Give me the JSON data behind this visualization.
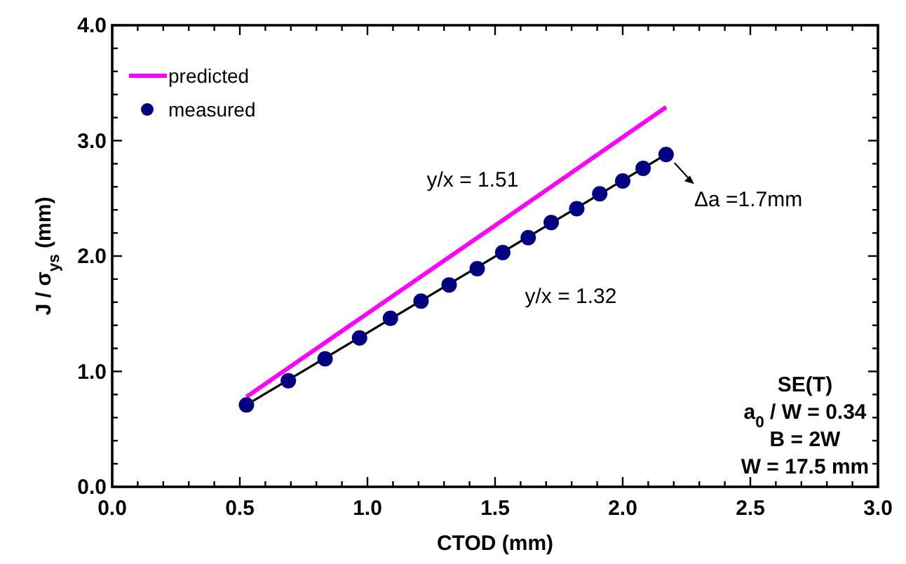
{
  "chart_data": {
    "type": "line",
    "xlabel": "CTOD (mm)",
    "ylabel": "J / σ$_{ys}$ (mm)",
    "xlim": [
      0,
      3
    ],
    "ylim": [
      0,
      4
    ],
    "xticks": [
      {
        "value": 0,
        "label": "0.0"
      },
      {
        "value": 0.1,
        "label": null
      },
      {
        "value": 0.2,
        "label": null
      },
      {
        "value": 0.3,
        "label": null
      },
      {
        "value": 0.4,
        "label": null
      },
      {
        "value": 0.5,
        "label": "0.5"
      },
      {
        "value": 0.6,
        "label": null
      },
      {
        "value": 0.7,
        "label": null
      },
      {
        "value": 0.8,
        "label": null
      },
      {
        "value": 0.9,
        "label": null
      },
      {
        "value": 1,
        "label": "1.0"
      },
      {
        "value": 1.1,
        "label": null
      },
      {
        "value": 1.2,
        "label": null
      },
      {
        "value": 1.3,
        "label": null
      },
      {
        "value": 1.4,
        "label": null
      },
      {
        "value": 1.5,
        "label": "1.5"
      },
      {
        "value": 1.6,
        "label": null
      },
      {
        "value": 1.7,
        "label": null
      },
      {
        "value": 1.8,
        "label": null
      },
      {
        "value": 1.9,
        "label": null
      },
      {
        "value": 2,
        "label": "2.0"
      },
      {
        "value": 2.1,
        "label": null
      },
      {
        "value": 2.2,
        "label": null
      },
      {
        "value": 2.3,
        "label": null
      },
      {
        "value": 2.4,
        "label": null
      },
      {
        "value": 2.5,
        "label": "2.5"
      },
      {
        "value": 2.6,
        "label": null
      },
      {
        "value": 2.7,
        "label": null
      },
      {
        "value": 2.8,
        "label": null
      },
      {
        "value": 2.9,
        "label": null
      },
      {
        "value": 3,
        "label": "3.0"
      }
    ],
    "yticks": [
      {
        "value": 0,
        "label": "0.0"
      },
      {
        "value": 0.2,
        "label": null
      },
      {
        "value": 0.4,
        "label": null
      },
      {
        "value": 0.6,
        "label": null
      },
      {
        "value": 0.8,
        "label": null
      },
      {
        "value": 1,
        "label": "1.0"
      },
      {
        "value": 1.2,
        "label": null
      },
      {
        "value": 1.4,
        "label": null
      },
      {
        "value": 1.6,
        "label": null
      },
      {
        "value": 1.8,
        "label": null
      },
      {
        "value": 2,
        "label": "2.0"
      },
      {
        "value": 2.2,
        "label": null
      },
      {
        "value": 2.4,
        "label": null
      },
      {
        "value": 2.6,
        "label": null
      },
      {
        "value": 2.8,
        "label": null
      },
      {
        "value": 3,
        "label": "3.0"
      },
      {
        "value": 3.2,
        "label": null
      },
      {
        "value": 3.4,
        "label": null
      },
      {
        "value": 3.6,
        "label": null
      },
      {
        "value": 3.8,
        "label": null
      },
      {
        "value": 4,
        "label": "4.0"
      }
    ],
    "grid": false,
    "legend": "top left",
    "series": [
      {
        "name": "predicted",
        "color": "#ff00ff",
        "marker": "none",
        "x": [
          0.526,
          1.53,
          2.17
        ],
        "values": [
          0.78,
          2.31,
          3.29
        ]
      },
      {
        "color": "#000000",
        "marker": "none",
        "x": [
          0.526,
          2.17
        ],
        "values": [
          0.71,
          2.88
        ]
      },
      {
        "name": "measured",
        "type": "scatter",
        "color": "#000080",
        "marker": "circle",
        "x": [
          0.526,
          0.69,
          0.834,
          0.969,
          1.09,
          1.21,
          1.32,
          1.43,
          1.53,
          1.63,
          1.72,
          1.82,
          1.91,
          2.0,
          2.08,
          2.17
        ],
        "values": [
          0.71,
          0.92,
          1.11,
          1.29,
          1.46,
          1.61,
          1.75,
          1.89,
          2.03,
          2.16,
          2.29,
          2.41,
          2.54,
          2.65,
          2.76,
          2.88
        ]
      }
    ],
    "annotations": [
      "y/x = 1.51",
      "y/x = 1.32",
      {
        "text": "Δa =1.7mm",
        "x": 2.17,
        "y": 2.88
      },
      "SE(T)",
      "a$_{0}$ / W = 0.34",
      "B = 2W",
      "W = 17.5 mm"
    ]
  }
}
